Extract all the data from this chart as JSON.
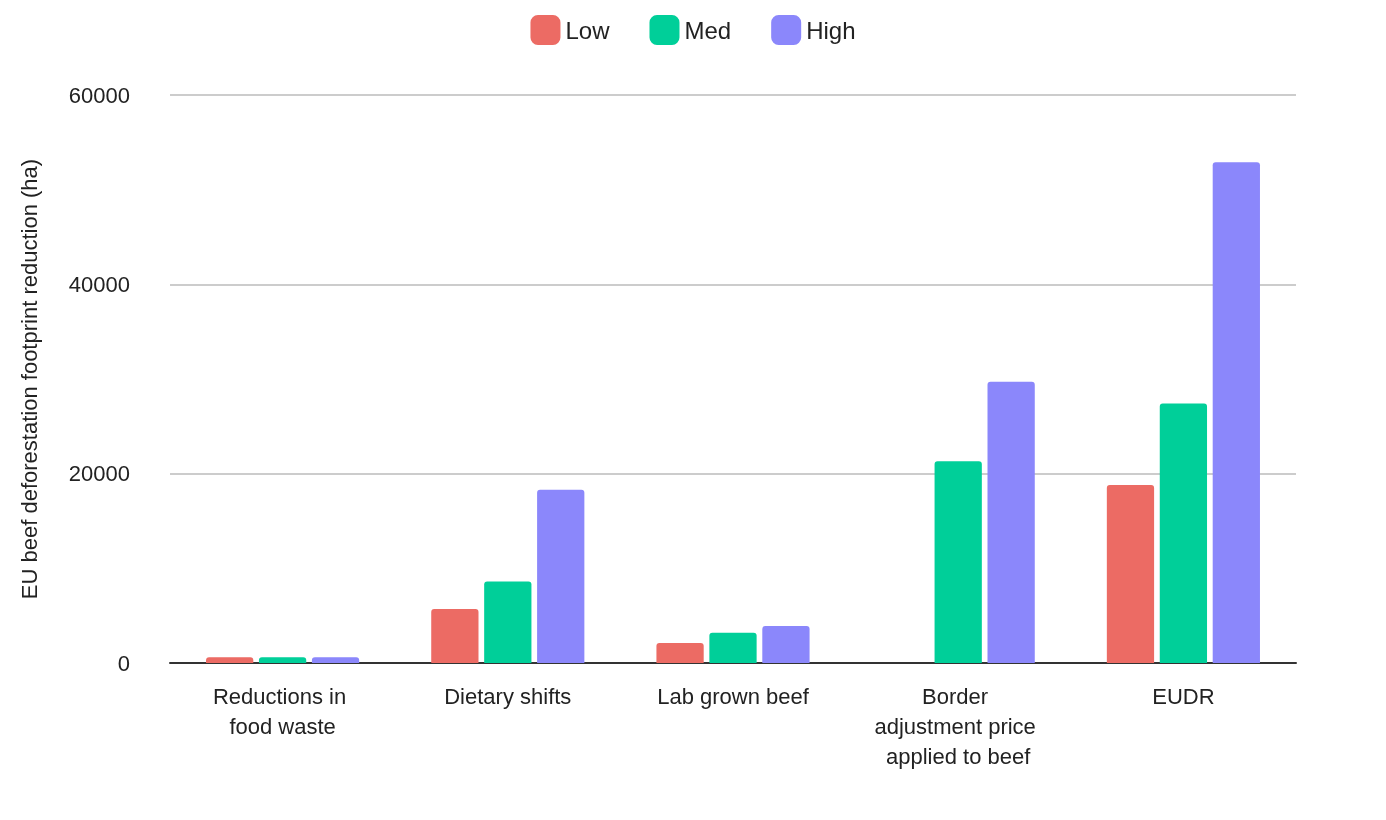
{
  "chart_data": {
    "type": "bar",
    "ylabel": "EU beef deforestation footprint reduction (ha)",
    "categories": [
      "Reductions in food waste",
      "Dietary shifts",
      "Lab grown beef",
      "Border adjustment price applied to beef",
      "EUDR"
    ],
    "series": [
      {
        "name": "Low",
        "color": "#ec6b64",
        "values": [
          600,
          5700,
          2100,
          null,
          18800
        ]
      },
      {
        "name": "Med",
        "color": "#00cf99",
        "values": [
          600,
          8600,
          3200,
          21300,
          27400
        ]
      },
      {
        "name": "High",
        "color": "#8b87fb",
        "values": [
          600,
          18300,
          3900,
          29700,
          52900
        ]
      }
    ],
    "ylim": [
      0,
      60000
    ],
    "yticks": [
      0,
      20000,
      40000,
      60000
    ],
    "grid": "y",
    "legend": "top"
  }
}
